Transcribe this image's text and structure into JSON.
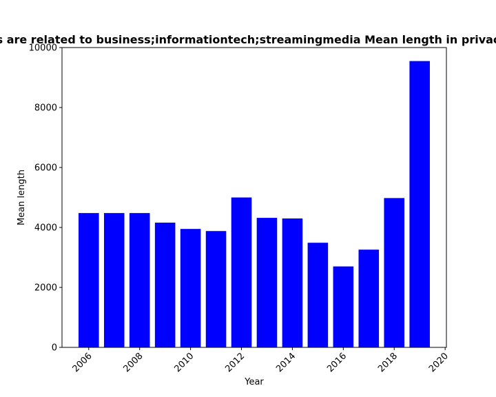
{
  "chart_data": {
    "type": "bar",
    "title": "s are related to business;informationtech;streamingmedia Mean length in privac",
    "xlabel": "Year",
    "ylabel": "Mean length",
    "x": [
      2006,
      2007,
      2008,
      2009,
      2010,
      2011,
      2012,
      2013,
      2014,
      2015,
      2016,
      2017,
      2018,
      2019
    ],
    "values": [
      4480,
      4480,
      4480,
      4160,
      3950,
      3880,
      5000,
      4320,
      4300,
      3490,
      2700,
      3260,
      4980,
      9550
    ],
    "xlim": [
      2004.95,
      2020.05
    ],
    "ylim": [
      0,
      10000
    ],
    "x_ticks": [
      2006,
      2008,
      2010,
      2012,
      2014,
      2016,
      2018,
      2020
    ],
    "x_tick_labels": [
      "2006",
      "2008",
      "2010",
      "2012",
      "2014",
      "2016",
      "2018",
      "2020"
    ],
    "y_ticks": [
      0,
      2000,
      4000,
      6000,
      8000,
      10000
    ],
    "y_tick_labels": [
      "0",
      "2000",
      "4000",
      "6000",
      "8000",
      "10000"
    ],
    "bar_color": "#0000ff",
    "grid": false,
    "legend": "none"
  }
}
